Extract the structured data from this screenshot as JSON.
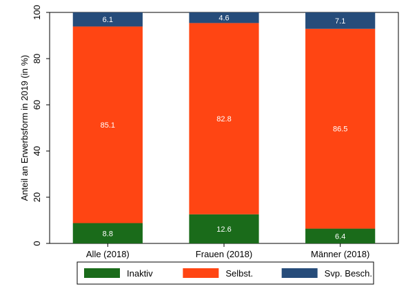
{
  "chart_data": {
    "type": "bar",
    "stacked": true,
    "title": "",
    "xlabel": "",
    "ylabel": "Anteil an Erwerbsform in 2019 (in %)",
    "ylim": [
      0,
      100
    ],
    "yticks": [
      0,
      20,
      40,
      60,
      80,
      100
    ],
    "grid": false,
    "legend_position": "bottom",
    "categories": [
      "Alle (2018)",
      "Frauen (2018)",
      "Männer (2018)"
    ],
    "series": [
      {
        "name": "Inaktiv",
        "color": "#1a6b1a",
        "values": [
          8.8,
          12.6,
          6.4
        ]
      },
      {
        "name": "Selbst.",
        "color": "#ff4513",
        "values": [
          85.1,
          82.8,
          86.5
        ]
      },
      {
        "name": "Svp. Besch.",
        "color": "#264c7a",
        "values": [
          6.1,
          4.6,
          7.1
        ]
      }
    ]
  }
}
